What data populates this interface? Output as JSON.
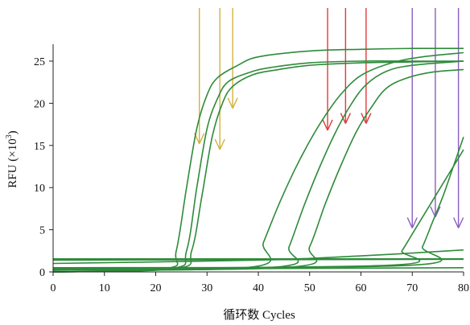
{
  "chart_data": {
    "type": "line",
    "xlabel": "循环数 Cycles",
    "ylabel": "RFU (×10",
    "ylabel_sup": "3",
    "ylabel_close": ")",
    "xlim": [
      0,
      80
    ],
    "ylim": [
      0,
      27
    ],
    "xticks": [
      "0",
      "10",
      "20",
      "30",
      "40",
      "50",
      "60",
      "70",
      "80"
    ],
    "yticks": [
      "0",
      "5",
      "10",
      "15",
      "20",
      "25"
    ],
    "grid": false,
    "curve_color": "#2e8b3a",
    "series": [
      {
        "x": [
          0,
          22,
          24,
          26,
          28,
          30,
          32,
          36,
          40,
          50,
          60,
          70,
          80
        ],
        "y": [
          0,
          0.4,
          2.5,
          10,
          17,
          21,
          23,
          24.5,
          25.5,
          26.2,
          26.4,
          26.5,
          26.5
        ]
      },
      {
        "x": [
          0,
          23,
          26,
          28,
          30,
          32,
          34,
          38,
          42,
          50,
          60,
          70,
          80
        ],
        "y": [
          0,
          0.4,
          2.5,
          10,
          17,
          20.5,
          22.5,
          23.6,
          24.2,
          24.8,
          25,
          25,
          25
        ]
      },
      {
        "x": [
          0,
          24,
          27,
          29,
          31,
          33,
          35,
          39,
          44,
          50,
          60,
          70,
          80
        ],
        "y": [
          0,
          0.4,
          2.5,
          9,
          16,
          20,
          22,
          23.4,
          24,
          24.5,
          24.8,
          24.9,
          25
        ]
      },
      {
        "x": [
          0,
          39,
          41,
          44,
          47,
          50,
          53,
          56,
          60,
          66,
          72,
          80
        ],
        "y": [
          0.2,
          0.6,
          3.5,
          8,
          12,
          15.5,
          18.5,
          21,
          23.3,
          24.8,
          25.5,
          26
        ]
      },
      {
        "x": [
          0,
          44,
          46,
          49,
          52,
          55,
          58,
          61,
          65,
          70,
          80
        ],
        "y": [
          0.2,
          0.6,
          3,
          8,
          12.5,
          16.5,
          19.8,
          22.2,
          23.8,
          24.5,
          25
        ]
      },
      {
        "x": [
          0,
          47,
          50,
          53,
          56,
          59,
          62,
          65,
          69,
          74,
          80
        ],
        "y": [
          0.2,
          0.6,
          3,
          8,
          12.5,
          16.5,
          19.5,
          21.8,
          23,
          23.7,
          24
        ]
      },
      {
        "x": [
          0,
          66,
          68,
          70,
          72,
          74,
          76,
          78,
          80
        ],
        "y": [
          0.4,
          0.8,
          2.5,
          4.5,
          6.5,
          8.5,
          10.5,
          12.5,
          14.5
        ]
      },
      {
        "x": [
          0,
          70,
          72,
          74,
          76,
          78,
          80
        ],
        "y": [
          0.5,
          0.8,
          3,
          6,
          9,
          12.5,
          16
        ]
      },
      {
        "x": [
          0,
          40,
          60,
          80
        ],
        "y": [
          1.0,
          1.4,
          1.9,
          2.6
        ]
      },
      {
        "x": [
          0,
          80
        ],
        "y": [
          1.4,
          1.5
        ]
      },
      {
        "x": [
          0,
          80
        ],
        "y": [
          1.55,
          1.55
        ]
      },
      {
        "x": [
          0,
          80
        ],
        "y": [
          0.3,
          0.5
        ]
      }
    ],
    "arrow_groups": [
      {
        "color": "#d4b23a",
        "arrows": [
          {
            "x": 28.5,
            "y": 15.2
          },
          {
            "x": 32.5,
            "y": 14.5
          },
          {
            "x": 35,
            "y": 19.4
          }
        ]
      },
      {
        "color": "#e03a3a",
        "arrows": [
          {
            "x": 53.5,
            "y": 16.8
          },
          {
            "x": 57,
            "y": 17.6
          },
          {
            "x": 61,
            "y": 17.6
          }
        ]
      },
      {
        "color": "#8a5cc2",
        "arrows": [
          {
            "x": 70,
            "y": 5.2
          },
          {
            "x": 74.5,
            "y": 6.5
          },
          {
            "x": 79,
            "y": 5.2
          }
        ]
      }
    ]
  }
}
